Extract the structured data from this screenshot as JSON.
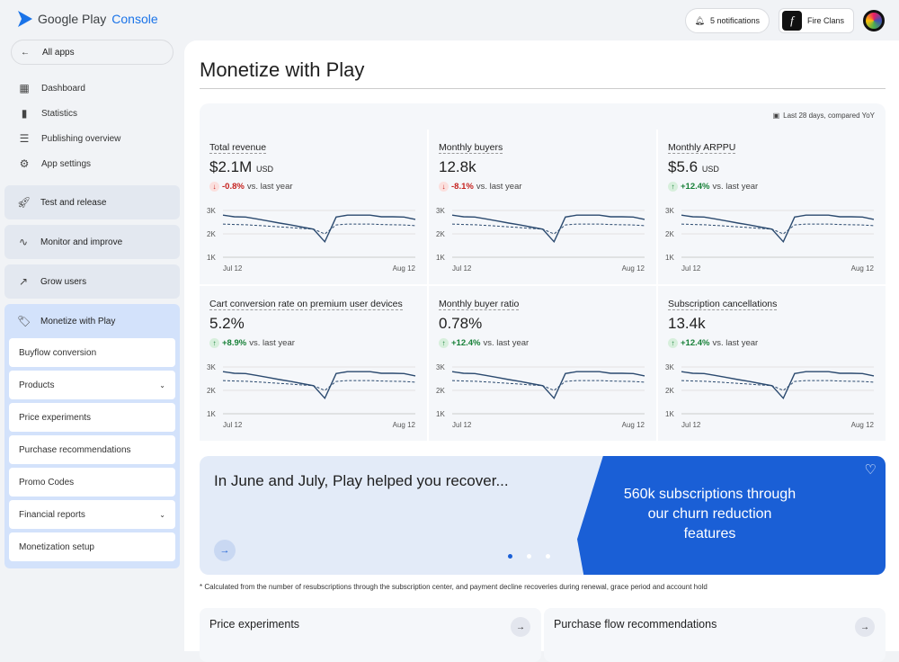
{
  "header": {
    "logo_text": "Google Play",
    "logo_accent": "Console",
    "notifications": "5 notifications",
    "app_name": "Fire Clans"
  },
  "sidebar": {
    "all_apps": "All apps",
    "items": [
      {
        "label": "Dashboard",
        "icon": "dashboard-icon"
      },
      {
        "label": "Statistics",
        "icon": "bar-chart-icon"
      },
      {
        "label": "Publishing overview",
        "icon": "publishing-icon"
      },
      {
        "label": "App settings",
        "icon": "gear-icon"
      }
    ],
    "groups": [
      {
        "label": "Test and release"
      },
      {
        "label": "Monitor and improve"
      },
      {
        "label": "Grow users"
      },
      {
        "label": "Monetize with Play"
      }
    ],
    "sub_items": [
      {
        "label": "Buyflow conversion"
      },
      {
        "label": "Products",
        "chevron": true
      },
      {
        "label": "Price experiments"
      },
      {
        "label": "Purchase recommendations"
      },
      {
        "label": "Promo Codes"
      },
      {
        "label": "Financial reports",
        "chevron": true
      },
      {
        "label": "Monetization setup"
      }
    ]
  },
  "page": {
    "title": "Monetize with Play",
    "range": "Last 28 days, compared YoY"
  },
  "metrics": [
    {
      "title": "Total revenue",
      "value": "$2.1M",
      "unit": "USD",
      "delta": "-0.8%",
      "direction": "down",
      "suffix": "vs. last year"
    },
    {
      "title": "Monthly buyers",
      "value": "12.8k",
      "unit": "",
      "delta": "-8.1%",
      "direction": "down",
      "suffix": "vs. last year"
    },
    {
      "title": "Monthly ARPPU",
      "value": "$5.6",
      "unit": "USD",
      "delta": "+12.4%",
      "direction": "up",
      "suffix": "vs. last year"
    },
    {
      "title": "Cart conversion rate on premium user devices",
      "value": "5.2%",
      "unit": "",
      "delta": "+8.9%",
      "direction": "up",
      "suffix": "vs. last year"
    },
    {
      "title": "Monthly buyer ratio",
      "value": "0.78%",
      "unit": "",
      "delta": "+12.4%",
      "direction": "up",
      "suffix": "vs. last year"
    },
    {
      "title": "Subscription cancellations",
      "value": "13.4k",
      "unit": "",
      "delta": "+12.4%",
      "direction": "up",
      "suffix": "vs. last year"
    }
  ],
  "chart_data": {
    "type": "line",
    "yticks": [
      "3K",
      "2K",
      "1K"
    ],
    "ylim": [
      1000,
      3000
    ],
    "xticks": [
      "Jul 12",
      "Aug 12"
    ],
    "series": [
      {
        "style": "solid",
        "values": [
          2800,
          2730,
          2720,
          2640,
          2550,
          2460,
          2380,
          2290,
          2200,
          1660,
          2720,
          2800,
          2800,
          2800,
          2730,
          2730,
          2720,
          2620
        ]
      },
      {
        "style": "dashed",
        "values": [
          2420,
          2400,
          2390,
          2360,
          2330,
          2300,
          2270,
          2230,
          2200,
          2000,
          2380,
          2420,
          2420,
          2420,
          2400,
          2390,
          2380,
          2350
        ]
      }
    ]
  },
  "banner": {
    "title": "In June and July, Play helped you recover...",
    "highlight": "560k subscriptions through our churn reduction features",
    "footnote": "* Calculated from the number of resubscriptions through the subscription center, and payment decline recoveries during renewal, grace period and account hold"
  },
  "cards": [
    {
      "title": "Price experiments"
    },
    {
      "title": "Purchase flow recommendations"
    }
  ],
  "colors": {
    "accent": "#1a73e8",
    "line": "#2b4a6f",
    "down": "#c5221f",
    "up": "#188038",
    "banner": "#1a5fd6"
  }
}
